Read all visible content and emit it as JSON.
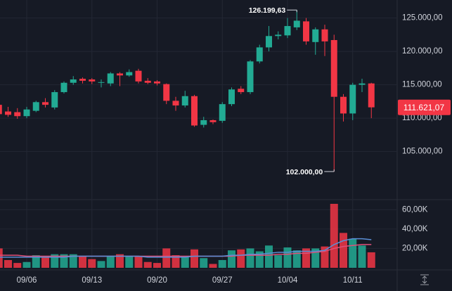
{
  "chart_data": {
    "type": "candlestick",
    "categories": [
      null,
      null,
      null,
      "09/06",
      null,
      null,
      null,
      null,
      null,
      null,
      "09/13",
      null,
      null,
      null,
      null,
      null,
      null,
      "09/20",
      null,
      null,
      null,
      null,
      null,
      null,
      "09/27",
      null,
      null,
      null,
      null,
      null,
      null,
      "10/04",
      null,
      null,
      null,
      null,
      null,
      null,
      "10/11",
      null,
      null
    ],
    "open": [
      112000,
      111000,
      110900,
      110300,
      111100,
      112400,
      111600,
      113900,
      115300,
      115900,
      115800,
      115300,
      115200,
      116700,
      116400,
      117100,
      115600,
      115500,
      115100,
      112600,
      111900,
      113300,
      109000,
      109700,
      109600,
      112100,
      114400,
      113900,
      118500,
      120600,
      122300,
      122400,
      123600,
      124500,
      121400,
      123300,
      121700,
      113200,
      110700,
      115000,
      115200
    ],
    "high": [
      112800,
      111700,
      111500,
      111700,
      112600,
      113000,
      114200,
      115500,
      116300,
      116100,
      116000,
      115800,
      116900,
      116900,
      117300,
      117400,
      116000,
      115700,
      115200,
      113200,
      114100,
      113500,
      110200,
      109800,
      112400,
      114600,
      114800,
      118700,
      121000,
      123800,
      123000,
      125000,
      126199.63,
      125000,
      123600,
      124000,
      122500,
      113600,
      115300,
      115900,
      115300
    ],
    "low": [
      110300,
      110200,
      109900,
      110000,
      110900,
      111600,
      111300,
      113700,
      115000,
      115200,
      115100,
      114600,
      114800,
      114800,
      116200,
      115200,
      115100,
      114900,
      112100,
      111100,
      111600,
      108700,
      108600,
      109100,
      109300,
      111800,
      113600,
      113600,
      118200,
      120000,
      121800,
      122000,
      123200,
      121000,
      119500,
      119300,
      102000,
      109500,
      109700,
      113900,
      110000
    ],
    "close": [
      110600,
      110500,
      110300,
      111300,
      112400,
      112000,
      113900,
      115300,
      115800,
      115600,
      115500,
      115400,
      116700,
      116400,
      116900,
      115500,
      115300,
      115200,
      112600,
      111900,
      113300,
      108900,
      109700,
      109400,
      112100,
      114300,
      113900,
      118500,
      120600,
      122300,
      122500,
      123800,
      124600,
      121500,
      123300,
      121500,
      113200,
      110700,
      115000,
      115200,
      111621.07
    ],
    "up_color": "#22ab94",
    "down_color": "#f23645",
    "ylim": [
      97900,
      127700
    ],
    "yticks": [
      {
        "value": 105000,
        "label": "105.000,00"
      },
      {
        "value": 110000,
        "label": "110.000,00"
      },
      {
        "value": 115000,
        "label": "115.000,00"
      },
      {
        "value": 120000,
        "label": "120.000,00"
      },
      {
        "value": 125000,
        "label": "125.000,00"
      }
    ],
    "grid": true,
    "annotations": [
      {
        "label": "126.199,63",
        "value": 126199.63
      },
      {
        "label": "102.000,00",
        "value": 102000
      }
    ],
    "last_price": {
      "label": "111.621,07",
      "value": 111621.07
    },
    "volume": {
      "values": [
        20,
        8,
        5,
        6,
        13,
        12,
        14,
        14,
        14,
        12,
        9,
        7,
        12,
        14,
        12,
        12,
        6,
        5,
        20,
        13,
        12,
        19,
        10,
        4,
        8,
        18,
        19,
        20,
        17,
        23,
        13,
        21,
        18,
        20,
        20,
        22,
        66,
        36,
        30,
        23,
        16
      ],
      "ylim": [
        0,
        66
      ],
      "yticks": [
        {
          "value": 20,
          "label": "20,00K"
        },
        {
          "value": 40,
          "label": "40,00K"
        },
        {
          "value": 60,
          "label": "60,00K"
        }
      ],
      "ma": [
        {
          "color": "#e0507a",
          "values": [
            13,
            13,
            13,
            12,
            12,
            12,
            12,
            12,
            12,
            12,
            12,
            12,
            12,
            12,
            12,
            12,
            12,
            12,
            12,
            12,
            12,
            12,
            12,
            12,
            12,
            12,
            13,
            13,
            13,
            13,
            14,
            14,
            15,
            15,
            16,
            17,
            20,
            22,
            23,
            24,
            24
          ]
        },
        {
          "color": "#5b8fd6",
          "values": [
            11,
            11,
            11,
            11,
            11,
            11,
            11,
            11,
            12,
            12,
            12,
            12,
            12,
            12,
            12,
            12,
            11,
            11,
            11,
            11,
            11,
            12,
            12,
            12,
            12,
            13,
            13,
            14,
            14,
            15,
            16,
            16,
            17,
            17,
            17,
            18,
            24,
            28,
            30,
            30,
            29
          ]
        }
      ]
    }
  }
}
